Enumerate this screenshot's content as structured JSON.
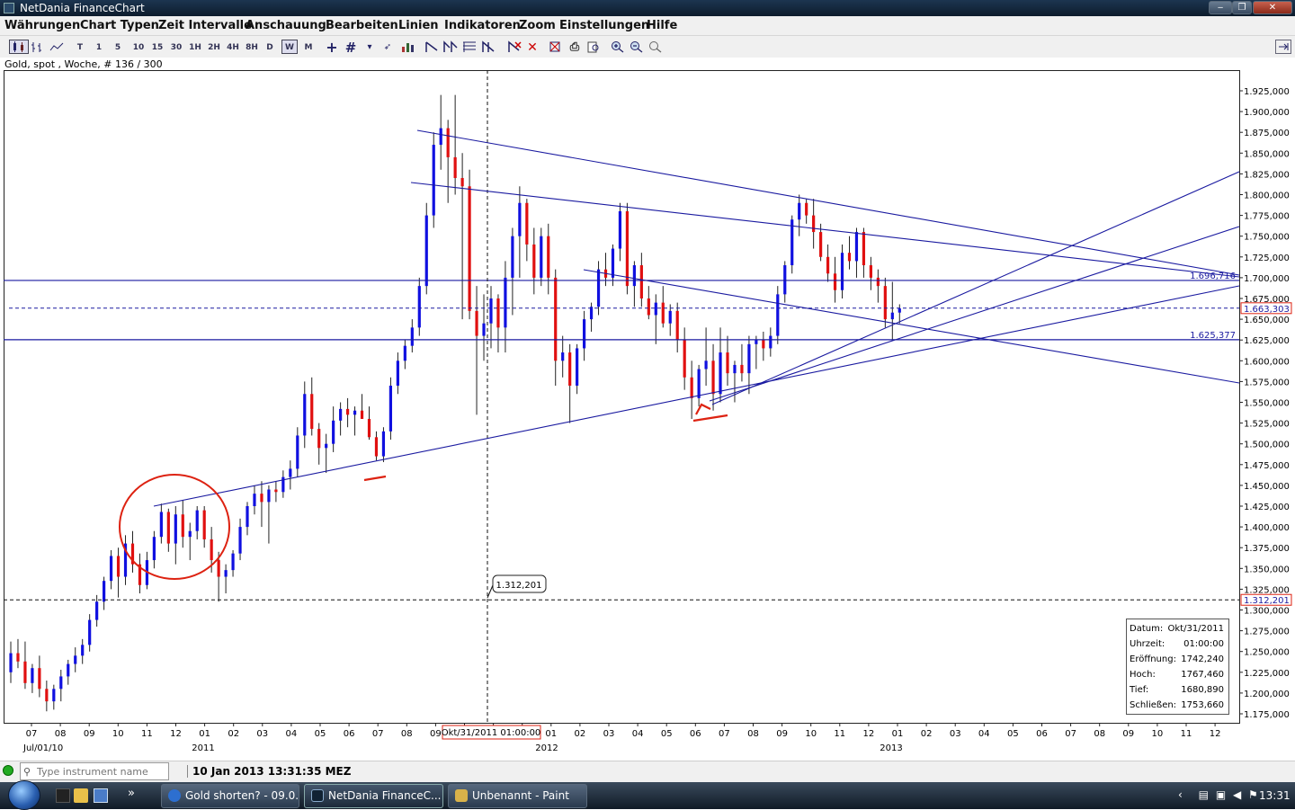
{
  "window": {
    "title": "NetDania FinanceChart",
    "minimize": "‒",
    "restore": "❐",
    "close": "✕"
  },
  "menu": [
    "Währungen",
    "Chart Typen",
    "Zeit Intervalle",
    "Anschauung",
    "Bearbeiten",
    "Linien",
    "Indikatoren",
    "Zoom",
    "Einstellungen",
    "Hilfe"
  ],
  "toolbar": {
    "intervals": [
      "T",
      "1",
      "5",
      "10",
      "15",
      "30",
      "1H",
      "2H",
      "4H",
      "8H",
      "D",
      "W",
      "M"
    ],
    "selected_interval": "W"
  },
  "instrument_info": "Gold, spot , Woche, # 136 / 300",
  "chart_data": {
    "type": "candlestick",
    "title": "Gold, spot , Woche, # 136 / 300",
    "ylim": [
      1175000,
      1925000
    ],
    "ytick_labels": [
      "1.925,000",
      "1.900,000",
      "1.875,000",
      "1.850,000",
      "1.825,000",
      "1.800,000",
      "1.775,000",
      "1.750,000",
      "1.725,000",
      "1.700,000",
      "1.675,000",
      "1.650,000",
      "1.625,000",
      "1.600,000",
      "1.575,000",
      "1.550,000",
      "1.525,000",
      "1.500,000",
      "1.475,000",
      "1.450,000",
      "1.425,000",
      "1.400,000",
      "1.375,000",
      "1.350,000",
      "1.325,000",
      "1.300,000",
      "1.275,000",
      "1.250,000",
      "1.225,000",
      "1.200,000",
      "1.175,000"
    ],
    "xtick_labels": [
      "07",
      "08",
      "09",
      "10",
      "11",
      "12",
      "01",
      "02",
      "03",
      "04",
      "05",
      "06",
      "07",
      "08",
      "09",
      "10",
      "11",
      "12",
      "01",
      "02",
      "03",
      "04",
      "05",
      "06",
      "07",
      "08",
      "09",
      "10",
      "11",
      "12",
      "01",
      "02",
      "03",
      "04",
      "05",
      "06",
      "07",
      "08",
      "09",
      "10",
      "11",
      "12"
    ],
    "year_labels": [
      "Jul/01/10",
      "2011",
      "2012",
      "2013"
    ],
    "level_labels": {
      "upper_line": "1.696,716",
      "current_price": "1.663,303",
      "lower_line": "1.625,377",
      "cursor_price": "1.312,201"
    },
    "crosshair_date_label": "Okt/31/2011 01:00:00",
    "cursor_tooltip": "1.312,201",
    "candles": [
      [
        1.225,
        1.262,
        1.212,
        1.248
      ],
      [
        1.248,
        1.265,
        1.23,
        1.238
      ],
      [
        1.238,
        1.262,
        1.205,
        1.212
      ],
      [
        1.212,
        1.235,
        1.2,
        1.23
      ],
      [
        1.23,
        1.245,
        1.195,
        1.205
      ],
      [
        1.205,
        1.215,
        1.178,
        1.19
      ],
      [
        1.19,
        1.21,
        1.18,
        1.205
      ],
      [
        1.205,
        1.228,
        1.19,
        1.22
      ],
      [
        1.22,
        1.24,
        1.21,
        1.235
      ],
      [
        1.235,
        1.255,
        1.225,
        1.245
      ],
      [
        1.245,
        1.265,
        1.235,
        1.258
      ],
      [
        1.258,
        1.295,
        1.25,
        1.288
      ],
      [
        1.288,
        1.318,
        1.28,
        1.31
      ],
      [
        1.31,
        1.34,
        1.3,
        1.335
      ],
      [
        1.335,
        1.372,
        1.325,
        1.365
      ],
      [
        1.365,
        1.375,
        1.315,
        1.34
      ],
      [
        1.34,
        1.39,
        1.33,
        1.38
      ],
      [
        1.38,
        1.395,
        1.345,
        1.355
      ],
      [
        1.355,
        1.368,
        1.32,
        1.33
      ],
      [
        1.33,
        1.37,
        1.325,
        1.36
      ],
      [
        1.36,
        1.395,
        1.35,
        1.388
      ],
      [
        1.388,
        1.428,
        1.38,
        1.418
      ],
      [
        1.418,
        1.422,
        1.37,
        1.38
      ],
      [
        1.38,
        1.425,
        1.355,
        1.415
      ],
      [
        1.415,
        1.432,
        1.375,
        1.388
      ],
      [
        1.388,
        1.405,
        1.36,
        1.395
      ],
      [
        1.395,
        1.425,
        1.385,
        1.42
      ],
      [
        1.42,
        1.425,
        1.375,
        1.385
      ],
      [
        1.385,
        1.4,
        1.345,
        1.36
      ],
      [
        1.36,
        1.37,
        1.31,
        1.34
      ],
      [
        1.34,
        1.355,
        1.32,
        1.348
      ],
      [
        1.348,
        1.372,
        1.34,
        1.368
      ],
      [
        1.368,
        1.41,
        1.36,
        1.4
      ],
      [
        1.4,
        1.43,
        1.39,
        1.425
      ],
      [
        1.425,
        1.45,
        1.415,
        1.44
      ],
      [
        1.44,
        1.455,
        1.4,
        1.43
      ],
      [
        1.43,
        1.45,
        1.38,
        1.445
      ],
      [
        1.445,
        1.455,
        1.43,
        1.442
      ],
      [
        1.442,
        1.468,
        1.435,
        1.46
      ],
      [
        1.46,
        1.48,
        1.445,
        1.47
      ],
      [
        1.47,
        1.52,
        1.46,
        1.51
      ],
      [
        1.51,
        1.575,
        1.495,
        1.56
      ],
      [
        1.56,
        1.58,
        1.51,
        1.518
      ],
      [
        1.518,
        1.525,
        1.475,
        1.495
      ],
      [
        1.495,
        1.512,
        1.465,
        1.5
      ],
      [
        1.5,
        1.545,
        1.49,
        1.528
      ],
      [
        1.528,
        1.55,
        1.51,
        1.542
      ],
      [
        1.542,
        1.555,
        1.52,
        1.535
      ],
      [
        1.535,
        1.545,
        1.51,
        1.54
      ],
      [
        1.54,
        1.56,
        1.53,
        1.53
      ],
      [
        1.53,
        1.545,
        1.505,
        1.508
      ],
      [
        1.508,
        1.515,
        1.48,
        1.485
      ],
      [
        1.485,
        1.52,
        1.478,
        1.515
      ],
      [
        1.515,
        1.58,
        1.505,
        1.57
      ],
      [
        1.57,
        1.61,
        1.56,
        1.6
      ],
      [
        1.6,
        1.625,
        1.59,
        1.618
      ],
      [
        1.618,
        1.65,
        1.61,
        1.64
      ],
      [
        1.64,
        1.7,
        1.63,
        1.69
      ],
      [
        1.69,
        1.79,
        1.68,
        1.775
      ],
      [
        1.775,
        1.875,
        1.76,
        1.86
      ],
      [
        1.86,
        1.92,
        1.83,
        1.88
      ],
      [
        1.88,
        1.89,
        1.79,
        1.845
      ],
      [
        1.845,
        1.92,
        1.8,
        1.82
      ],
      [
        1.82,
        1.85,
        1.65,
        1.81
      ],
      [
        1.81,
        1.83,
        1.65,
        1.66
      ],
      [
        1.66,
        1.69,
        1.535,
        1.63
      ],
      [
        1.63,
        1.68,
        1.6,
        1.645
      ],
      [
        1.645,
        1.69,
        1.615,
        1.675
      ],
      [
        1.675,
        1.68,
        1.61,
        1.64
      ],
      [
        1.64,
        1.72,
        1.61,
        1.7
      ],
      [
        1.7,
        1.76,
        1.655,
        1.75
      ],
      [
        1.75,
        1.81,
        1.7,
        1.79
      ],
      [
        1.79,
        1.795,
        1.72,
        1.74
      ],
      [
        1.74,
        1.76,
        1.68,
        1.7
      ],
      [
        1.7,
        1.76,
        1.69,
        1.75
      ],
      [
        1.75,
        1.765,
        1.68,
        1.7
      ],
      [
        1.7,
        1.71,
        1.57,
        1.6
      ],
      [
        1.6,
        1.63,
        1.58,
        1.61
      ],
      [
        1.61,
        1.62,
        1.525,
        1.57
      ],
      [
        1.57,
        1.62,
        1.56,
        1.615
      ],
      [
        1.615,
        1.66,
        1.6,
        1.65
      ],
      [
        1.65,
        1.67,
        1.635,
        1.665
      ],
      [
        1.665,
        1.72,
        1.655,
        1.71
      ],
      [
        1.71,
        1.73,
        1.69,
        1.7
      ],
      [
        1.7,
        1.74,
        1.69,
        1.735
      ],
      [
        1.735,
        1.79,
        1.72,
        1.78
      ],
      [
        1.78,
        1.79,
        1.68,
        1.69
      ],
      [
        1.69,
        1.72,
        1.665,
        1.715
      ],
      [
        1.715,
        1.73,
        1.665,
        1.675
      ],
      [
        1.675,
        1.69,
        1.65,
        1.655
      ],
      [
        1.655,
        1.68,
        1.62,
        1.67
      ],
      [
        1.67,
        1.69,
        1.64,
        1.645
      ],
      [
        1.645,
        1.668,
        1.63,
        1.66
      ],
      [
        1.66,
        1.67,
        1.61,
        1.625
      ],
      [
        1.625,
        1.64,
        1.565,
        1.58
      ],
      [
        1.58,
        1.6,
        1.53,
        1.555
      ],
      [
        1.555,
        1.595,
        1.545,
        1.59
      ],
      [
        1.59,
        1.64,
        1.57,
        1.6
      ],
      [
        1.6,
        1.62,
        1.54,
        1.56
      ],
      [
        1.56,
        1.64,
        1.55,
        1.61
      ],
      [
        1.61,
        1.63,
        1.57,
        1.585
      ],
      [
        1.585,
        1.6,
        1.55,
        1.595
      ],
      [
        1.595,
        1.62,
        1.575,
        1.585
      ],
      [
        1.585,
        1.63,
        1.56,
        1.62
      ],
      [
        1.62,
        1.63,
        1.59,
        1.625
      ],
      [
        1.625,
        1.635,
        1.6,
        1.615
      ],
      [
        1.615,
        1.64,
        1.605,
        1.63
      ],
      [
        1.63,
        1.69,
        1.62,
        1.68
      ],
      [
        1.68,
        1.72,
        1.67,
        1.715
      ],
      [
        1.715,
        1.775,
        1.705,
        1.77
      ],
      [
        1.77,
        1.8,
        1.75,
        1.79
      ],
      [
        1.79,
        1.795,
        1.765,
        1.775
      ],
      [
        1.775,
        1.795,
        1.735,
        1.755
      ],
      [
        1.755,
        1.765,
        1.72,
        1.725
      ],
      [
        1.725,
        1.74,
        1.695,
        1.705
      ],
      [
        1.705,
        1.725,
        1.67,
        1.685
      ],
      [
        1.685,
        1.74,
        1.675,
        1.73
      ],
      [
        1.73,
        1.75,
        1.71,
        1.72
      ],
      [
        1.72,
        1.76,
        1.7,
        1.755
      ],
      [
        1.755,
        1.76,
        1.7,
        1.715
      ],
      [
        1.715,
        1.725,
        1.685,
        1.7
      ],
      [
        1.7,
        1.71,
        1.67,
        1.69
      ],
      [
        1.69,
        1.7,
        1.64,
        1.65
      ],
      [
        1.65,
        1.695,
        1.625,
        1.658
      ],
      [
        1.658,
        1.668,
        1.645,
        1.663
      ]
    ],
    "up_color": "#1010e0",
    "down_color": "#e01010",
    "trend_lines_color": "#1a1aa0"
  },
  "data_window": {
    "rows": [
      {
        "label": "Datum:",
        "value": "Okt/31/2011"
      },
      {
        "label": "Uhrzeit:",
        "value": "01:00:00"
      },
      {
        "label": "Eröffnung:",
        "value": "1742,240"
      },
      {
        "label": "Hoch:",
        "value": "1767,460"
      },
      {
        "label": "Tief:",
        "value": "1680,890"
      },
      {
        "label": "Schließen:",
        "value": "1753,660"
      }
    ]
  },
  "statusbar": {
    "search_placeholder": "Type instrument name",
    "timestamp": "10 Jan 2013 13:31:35 MEZ"
  },
  "taskbar": {
    "tasks": [
      "Gold shorten? - 09.0...",
      "NetDania FinanceC...",
      "Unbenannt - Paint"
    ],
    "clock": "13:31"
  }
}
